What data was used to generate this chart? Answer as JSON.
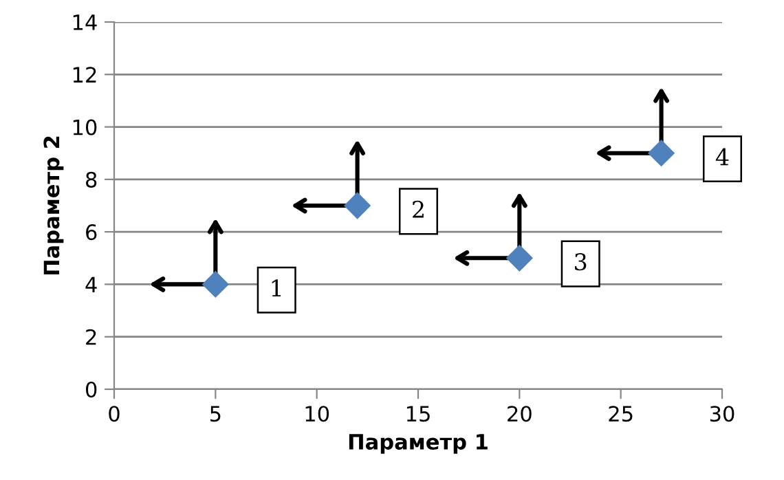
{
  "chart_data": {
    "type": "scatter",
    "xlabel": "Параметр 1",
    "ylabel": "Параметр 2",
    "x": [
      5,
      12,
      20,
      27
    ],
    "series": [
      {
        "color": "#4f81bd",
        "values": [
          4,
          7,
          5,
          9
        ]
      }
    ],
    "marker": "diamond",
    "xlim": [
      0,
      30
    ],
    "xticks": [
      0,
      5,
      10,
      15,
      20,
      25,
      30
    ],
    "ylim": [
      0,
      14
    ],
    "yticks": [
      0,
      2,
      4,
      6,
      8,
      10,
      12,
      14
    ],
    "grid": "y",
    "legend": false,
    "annotations": [
      {
        "text": "1",
        "x": 5,
        "y": 4
      },
      {
        "text": "2",
        "x": 12,
        "y": 7
      },
      {
        "text": "3",
        "x": 20,
        "y": 5
      },
      {
        "text": "4",
        "x": 27,
        "y": 9
      }
    ]
  }
}
